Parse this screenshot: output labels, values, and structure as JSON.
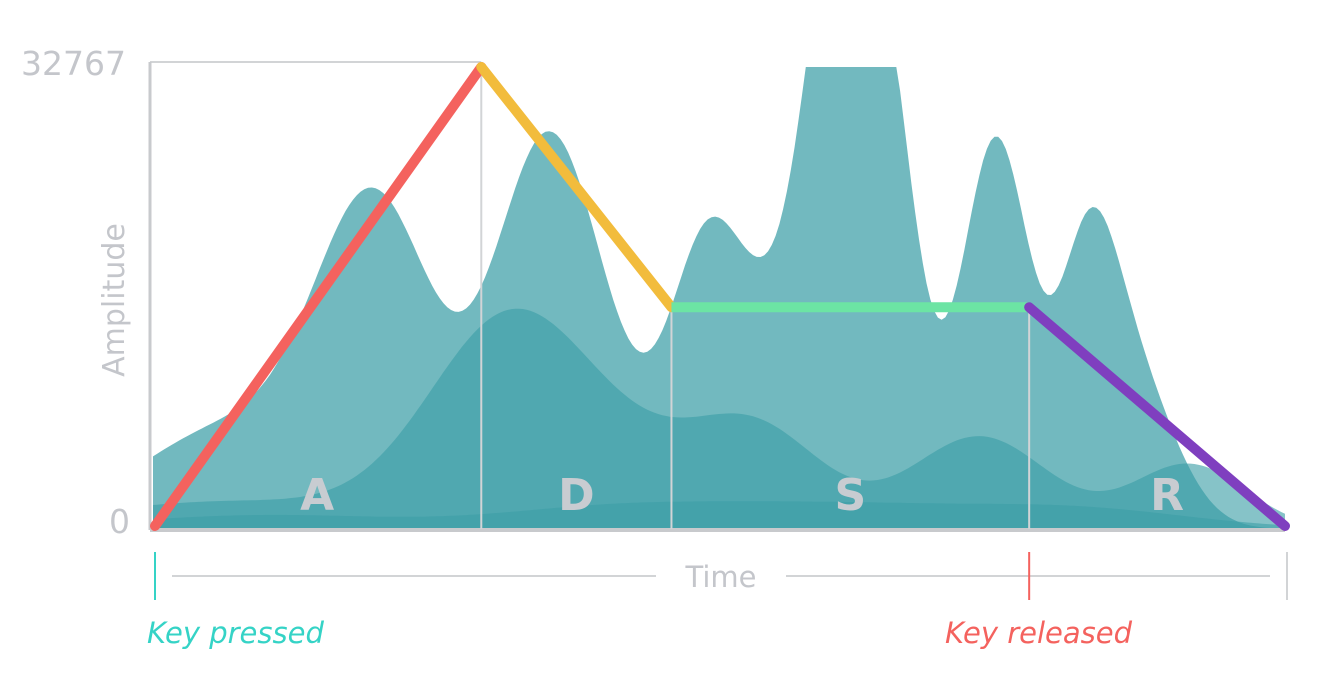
{
  "y_axis": {
    "label": "Amplitude",
    "max_label": "32767",
    "min_label": "0",
    "max_value": 32767
  },
  "x_axis": {
    "label": "Time"
  },
  "phases": [
    {
      "letter": "A",
      "name": "attack"
    },
    {
      "letter": "D",
      "name": "decay"
    },
    {
      "letter": "S",
      "name": "sustain"
    },
    {
      "letter": "R",
      "name": "release"
    }
  ],
  "envelope": {
    "peak_level": 1.0,
    "sustain_level": 0.48,
    "phase_fractions": [
      0.29,
      0.168,
      0.316,
      0.226
    ],
    "colors": {
      "attack": "#f4625e",
      "decay": "#f2bc3c",
      "sustain": "#6ce4a4",
      "release": "#7f3fbf"
    }
  },
  "events": {
    "key_pressed": {
      "label": "Key pressed",
      "color": "#35d3c6"
    },
    "key_released": {
      "label": "Key released",
      "color": "#f4625e"
    }
  },
  "colors": {
    "waveform": "#3c9ea6",
    "axis": "#c8cacd",
    "grid": "#d2d4d6"
  }
}
